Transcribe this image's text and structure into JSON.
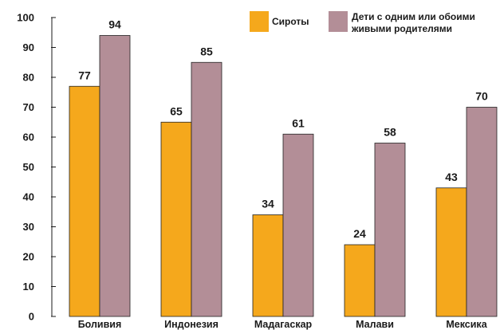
{
  "chart_data": {
    "type": "bar",
    "title": "",
    "xlabel": "",
    "ylabel": "",
    "categories": [
      "Боливия",
      "Индонезия",
      "Мадагаскар",
      "Малави",
      "Мексика"
    ],
    "series": [
      {
        "name": "Сироты",
        "color": "#f5a81c",
        "values": [
          77,
          65,
          34,
          24,
          43
        ]
      },
      {
        "name_lines": [
          "Дети с одним или обоими",
          "живыми родителями"
        ],
        "color": "#b38e97",
        "values": [
          94,
          85,
          61,
          58,
          70
        ]
      }
    ],
    "ylim": [
      0,
      100
    ],
    "yticks": [
      0,
      10,
      20,
      30,
      40,
      50,
      60,
      70,
      80,
      90,
      100
    ],
    "grid": false,
    "legend_position": "top-right",
    "show_value_labels": true
  }
}
